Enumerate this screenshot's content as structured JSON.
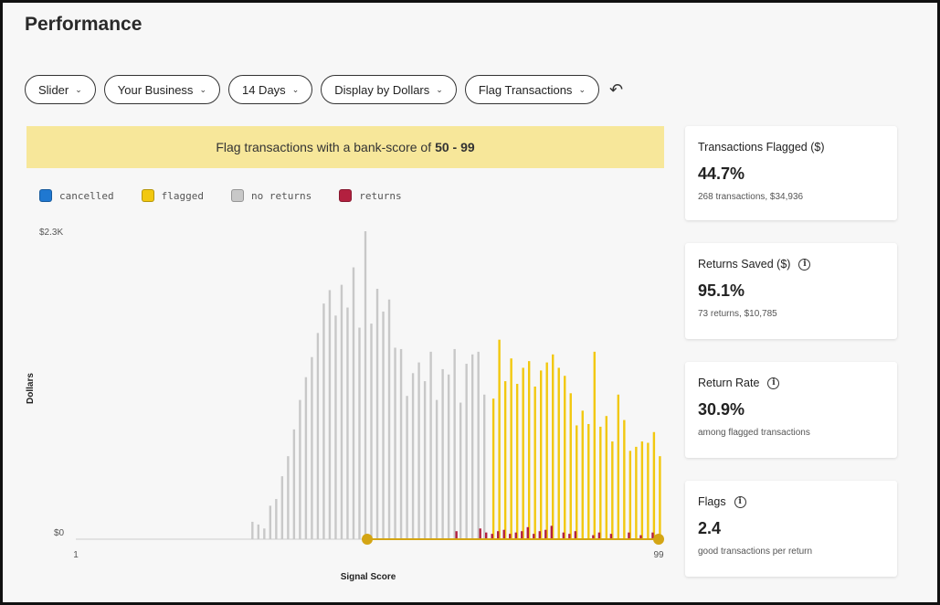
{
  "page": {
    "title": "Performance"
  },
  "toolbar": {
    "filters": [
      {
        "label": "Slider"
      },
      {
        "label": "Your Business"
      },
      {
        "label": "14 Days"
      },
      {
        "label": "Display by Dollars"
      },
      {
        "label": "Flag Transactions"
      }
    ],
    "undo_icon": "undo-icon"
  },
  "banner": {
    "text": "Flag transactions with a bank-score of",
    "range": "50 - 99"
  },
  "legend": [
    {
      "label": "cancelled",
      "color": "#1f78d1"
    },
    {
      "label": "flagged",
      "color": "#f2c80f"
    },
    {
      "label": "no returns",
      "color": "#c8c8c8"
    },
    {
      "label": "returns",
      "color": "#b3203f"
    }
  ],
  "chart_data": {
    "type": "bar",
    "x": [
      1,
      2,
      3,
      4,
      5,
      6,
      7,
      8,
      9,
      10,
      11,
      12,
      13,
      14,
      15,
      16,
      17,
      18,
      19,
      20,
      21,
      22,
      23,
      24,
      25,
      26,
      27,
      28,
      29,
      30,
      31,
      32,
      33,
      34,
      35,
      36,
      37,
      38,
      39,
      40,
      41,
      42,
      43,
      44,
      45,
      46,
      47,
      48,
      49,
      50,
      51,
      52,
      53,
      54,
      55,
      56,
      57,
      58,
      59,
      60,
      61,
      62,
      63,
      64,
      65,
      66,
      67,
      68,
      69,
      70,
      71,
      72,
      73,
      74,
      75,
      76,
      77,
      78,
      79,
      80,
      81,
      82,
      83,
      84,
      85,
      86,
      87,
      88,
      89,
      90,
      91,
      92,
      93,
      94,
      95,
      96,
      97,
      98,
      99
    ],
    "series": [
      {
        "name": "no returns",
        "values": [
          0,
          0,
          0,
          0,
          0,
          0,
          0,
          0,
          0,
          0,
          0,
          0,
          0,
          0,
          0,
          0,
          0,
          0,
          0,
          0,
          0,
          0,
          0,
          0,
          0,
          0,
          0,
          0,
          0,
          0,
          130,
          110,
          80,
          250,
          300,
          470,
          620,
          820,
          1040,
          1210,
          1360,
          1540,
          1760,
          1860,
          1670,
          1900,
          1730,
          2030,
          1580,
          2300,
          1610,
          1870,
          1700,
          1790,
          1430,
          1420,
          1070,
          1240,
          1320,
          1180,
          1400,
          1040,
          1270,
          1230,
          1420,
          1020,
          1310,
          1380,
          1400,
          1080,
          0,
          0,
          0,
          0,
          0,
          0,
          0,
          0,
          0,
          0,
          0,
          0,
          0,
          0,
          0,
          0,
          0,
          0,
          0,
          0,
          0,
          0,
          0,
          0,
          0,
          0,
          0,
          0,
          0
        ]
      },
      {
        "name": "flagged",
        "values": [
          0,
          0,
          0,
          0,
          0,
          0,
          0,
          0,
          0,
          0,
          0,
          0,
          0,
          0,
          0,
          0,
          0,
          0,
          0,
          0,
          0,
          0,
          0,
          0,
          0,
          0,
          0,
          0,
          0,
          0,
          0,
          0,
          0,
          0,
          0,
          0,
          0,
          0,
          0,
          0,
          0,
          0,
          0,
          0,
          0,
          0,
          0,
          0,
          0,
          0,
          0,
          0,
          0,
          0,
          0,
          0,
          0,
          0,
          0,
          0,
          0,
          0,
          0,
          0,
          0,
          0,
          0,
          0,
          0,
          0,
          1050,
          1490,
          1180,
          1350,
          1160,
          1280,
          1330,
          1140,
          1260,
          1320,
          1380,
          1280,
          1220,
          1090,
          850,
          960,
          860,
          1400,
          840,
          920,
          730,
          1080,
          890,
          660,
          690,
          730,
          720,
          800,
          620
        ]
      },
      {
        "name": "returns",
        "values": [
          0,
          0,
          0,
          0,
          0,
          0,
          0,
          0,
          0,
          0,
          0,
          0,
          0,
          0,
          0,
          0,
          0,
          0,
          0,
          0,
          0,
          0,
          0,
          0,
          0,
          0,
          0,
          0,
          0,
          0,
          0,
          0,
          0,
          0,
          0,
          0,
          0,
          0,
          0,
          0,
          0,
          0,
          0,
          0,
          0,
          0,
          0,
          0,
          0,
          0,
          0,
          0,
          0,
          0,
          0,
          0,
          0,
          0,
          0,
          0,
          0,
          0,
          0,
          0,
          60,
          0,
          0,
          0,
          80,
          50,
          40,
          60,
          70,
          40,
          50,
          60,
          90,
          40,
          60,
          70,
          100,
          0,
          50,
          40,
          60,
          0,
          0,
          30,
          50,
          0,
          40,
          0,
          0,
          50,
          0,
          30,
          0,
          50,
          20
        ]
      }
    ],
    "xlabel": "Signal Score",
    "ylabel": "Dollars",
    "x_ticks": [
      "1",
      "99"
    ],
    "y_ticks": [
      "$0",
      "$2.3K"
    ],
    "ylim": [
      0,
      2300
    ],
    "xlim": [
      1,
      99
    ],
    "slider_range": [
      50,
      99
    ]
  },
  "cards": [
    {
      "title": "Transactions Flagged ($)",
      "value": "44.7%",
      "sub": "268 transactions, $34,936",
      "info": false
    },
    {
      "title": "Returns Saved ($)",
      "value": "95.1%",
      "sub": "73 returns, $10,785",
      "info": true
    },
    {
      "title": "Return Rate",
      "value": "30.9%",
      "sub": "among flagged transactions",
      "info": true
    },
    {
      "title": "Flags",
      "value": "2.4",
      "sub": "good transactions per return",
      "info": true
    }
  ]
}
